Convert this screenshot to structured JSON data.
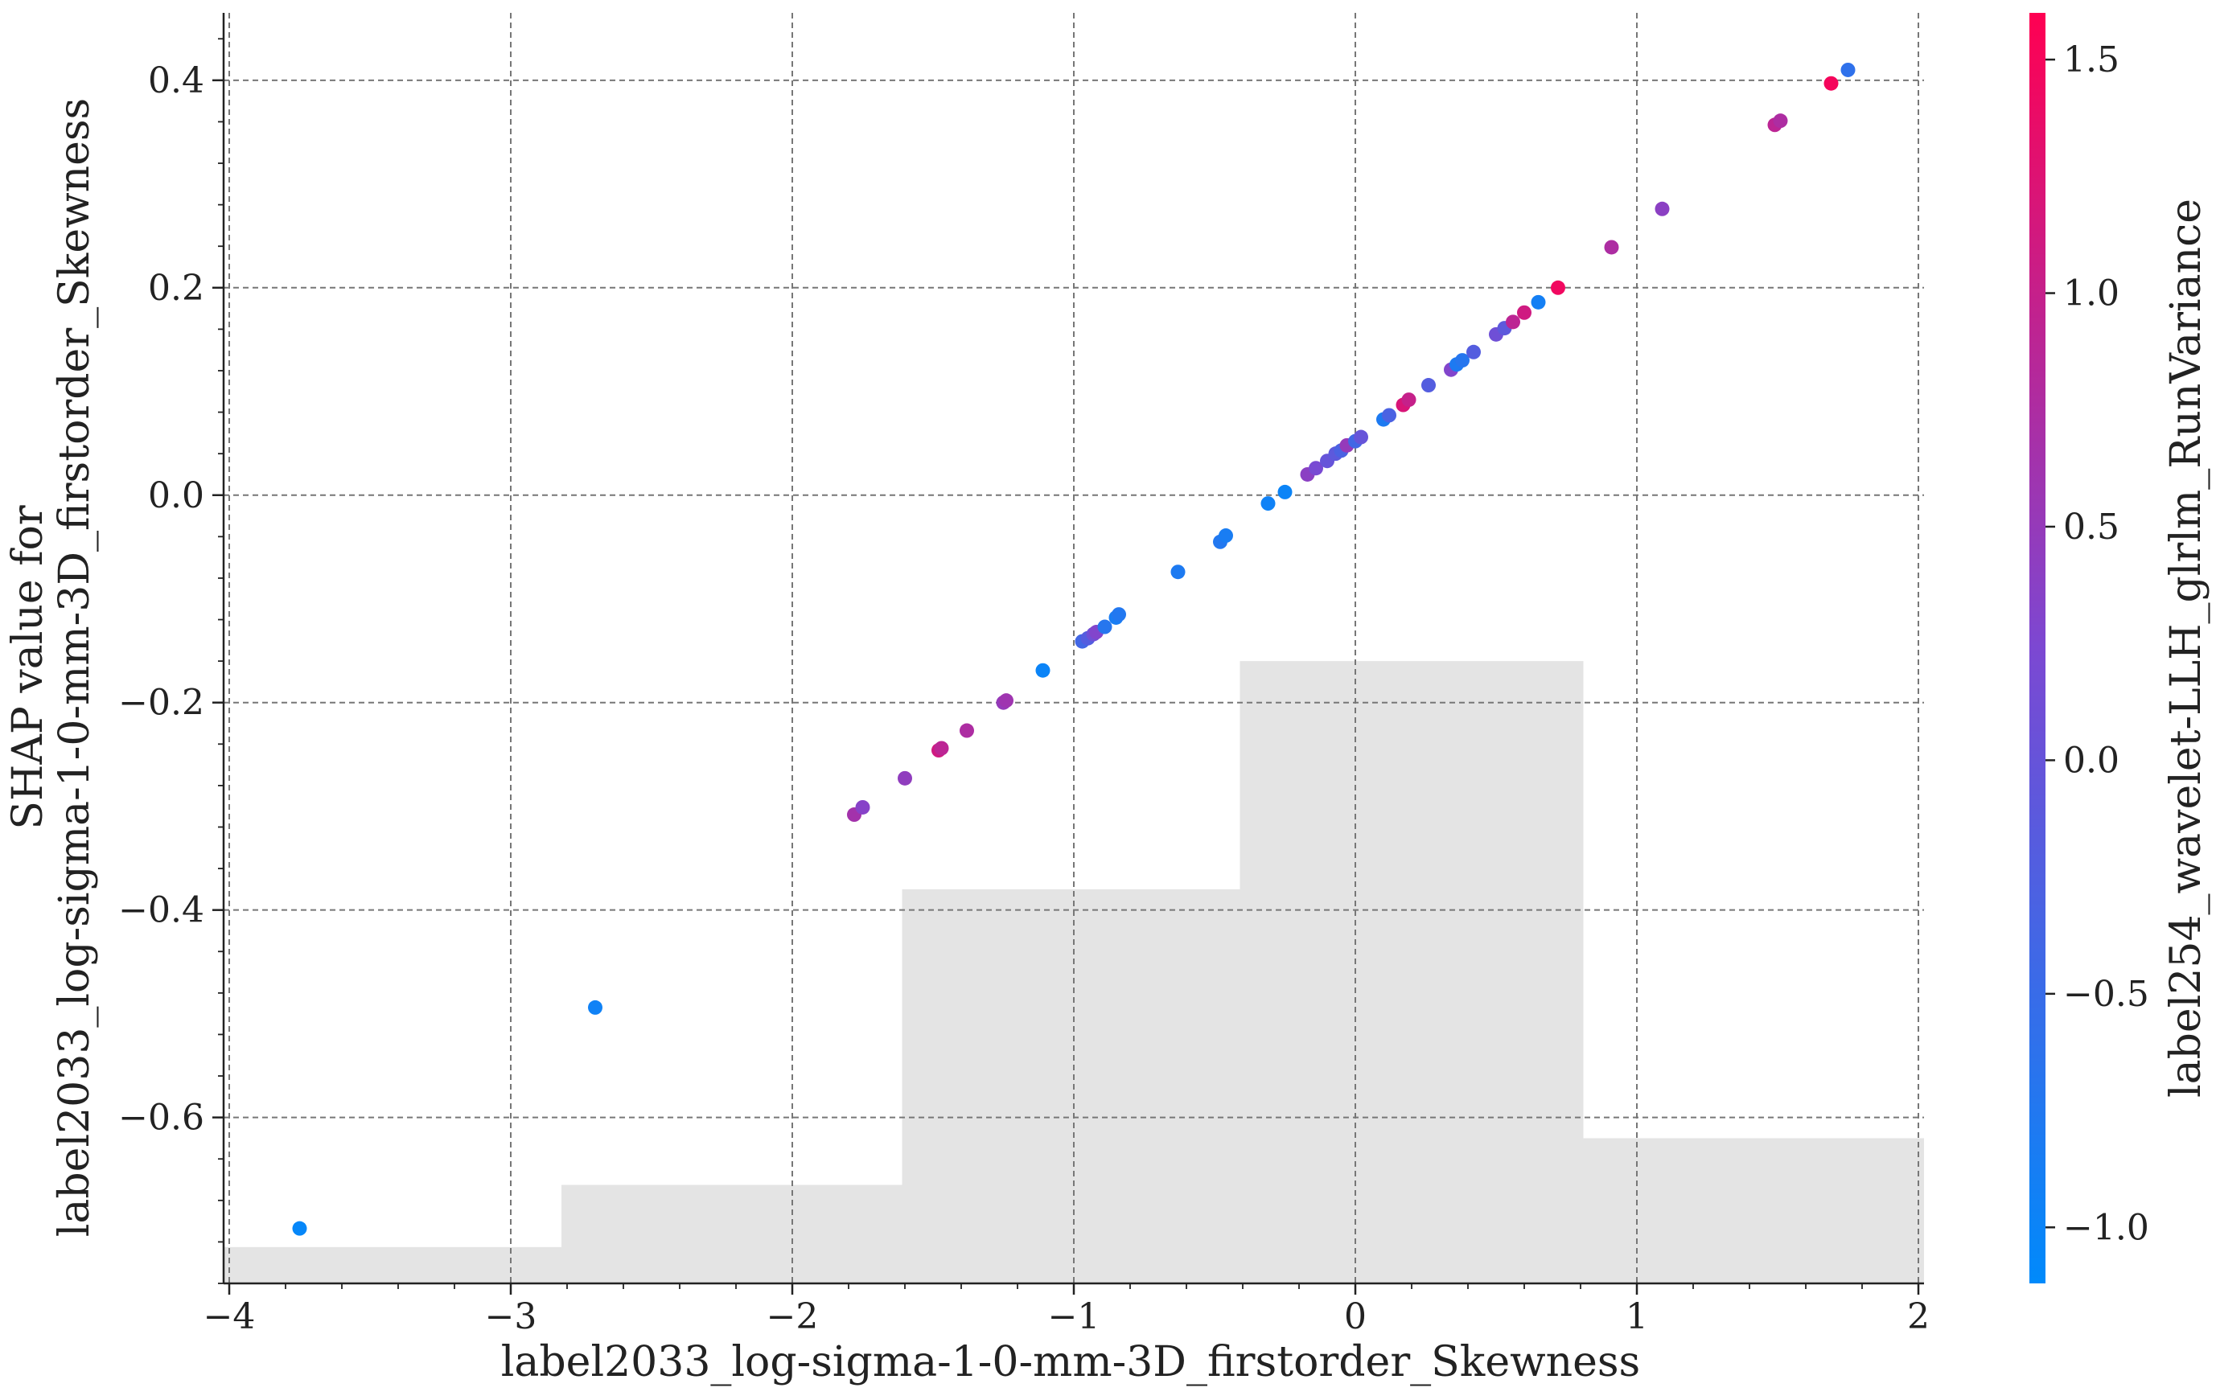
{
  "chart_data": {
    "type": "scatter",
    "title": "",
    "xlabel": "label2033_log-sigma-1-0-mm-3D_firstorder_Skewness",
    "ylabel_lines": [
      "SHAP value for",
      "label2033_log-sigma-1-0-mm-3D_firstorder_Skewness"
    ],
    "xlim": [
      -4.02,
      2.02
    ],
    "ylim": [
      -0.76,
      0.465
    ],
    "x_ticks": [
      -4,
      -3,
      -2,
      -1,
      0,
      1,
      2
    ],
    "x_tick_labels": [
      "−4",
      "−3",
      "−2",
      "−1",
      "0",
      "1",
      "2"
    ],
    "y_ticks": [
      -0.6,
      -0.4,
      -0.2,
      0.0,
      0.2,
      0.4
    ],
    "y_tick_labels": [
      "−0.6",
      "−0.4",
      "−0.2",
      "0.0",
      "0.2",
      "0.4"
    ],
    "grid": true,
    "colorbar": {
      "label": "label254_wavelet-LLH_glrlm_RunVariance",
      "range": [
        -1.12,
        1.6
      ],
      "ticks": [
        -1.0,
        -0.5,
        0.0,
        0.5,
        1.0,
        1.5
      ],
      "tick_labels": [
        "−1.0",
        "−0.5",
        "0.0",
        "0.5",
        "1.0",
        "1.5"
      ],
      "color_low": "#008afb",
      "color_high": "#ff0052"
    },
    "histogram": {
      "bin_edges": [
        -4.02,
        -2.82,
        -1.61,
        -0.41,
        0.81,
        2.02
      ],
      "heights_in_y_units": [
        0.035,
        0.095,
        0.38,
        0.6,
        0.14
      ]
    },
    "points": [
      {
        "x": -3.75,
        "y": -0.707,
        "c": -1.05
      },
      {
        "x": -2.7,
        "y": -0.494,
        "c": -0.95
      },
      {
        "x": -1.78,
        "y": -0.308,
        "c": 0.65
      },
      {
        "x": -1.75,
        "y": -0.301,
        "c": 0.35
      },
      {
        "x": -1.6,
        "y": -0.273,
        "c": 0.45
      },
      {
        "x": -1.48,
        "y": -0.246,
        "c": 1.1
      },
      {
        "x": -1.47,
        "y": -0.244,
        "c": 0.9
      },
      {
        "x": -1.38,
        "y": -0.227,
        "c": 0.75
      },
      {
        "x": -1.25,
        "y": -0.2,
        "c": 0.5
      },
      {
        "x": -1.24,
        "y": -0.198,
        "c": 0.6
      },
      {
        "x": -1.11,
        "y": -0.169,
        "c": -1.0
      },
      {
        "x": -0.97,
        "y": -0.141,
        "c": -0.4
      },
      {
        "x": -0.95,
        "y": -0.138,
        "c": -0.2
      },
      {
        "x": -0.93,
        "y": -0.134,
        "c": 0.1
      },
      {
        "x": -0.92,
        "y": -0.132,
        "c": 0.3
      },
      {
        "x": -0.89,
        "y": -0.127,
        "c": -0.7
      },
      {
        "x": -0.85,
        "y": -0.118,
        "c": -0.85
      },
      {
        "x": -0.84,
        "y": -0.115,
        "c": -0.75
      },
      {
        "x": -0.63,
        "y": -0.074,
        "c": -0.8
      },
      {
        "x": -0.48,
        "y": -0.045,
        "c": -0.75
      },
      {
        "x": -0.46,
        "y": -0.039,
        "c": -0.85
      },
      {
        "x": -0.31,
        "y": -0.008,
        "c": -0.95
      },
      {
        "x": -0.25,
        "y": 0.003,
        "c": -1.0
      },
      {
        "x": -0.17,
        "y": 0.02,
        "c": 0.4
      },
      {
        "x": -0.14,
        "y": 0.026,
        "c": 0.2
      },
      {
        "x": -0.1,
        "y": 0.033,
        "c": 0.0
      },
      {
        "x": -0.07,
        "y": 0.04,
        "c": -0.1
      },
      {
        "x": -0.05,
        "y": 0.043,
        "c": -0.3
      },
      {
        "x": -0.03,
        "y": 0.048,
        "c": 0.5
      },
      {
        "x": 0.0,
        "y": 0.052,
        "c": -0.4
      },
      {
        "x": 0.02,
        "y": 0.056,
        "c": 0.0
      },
      {
        "x": 0.1,
        "y": 0.073,
        "c": -0.8
      },
      {
        "x": 0.12,
        "y": 0.077,
        "c": -0.3
      },
      {
        "x": 0.17,
        "y": 0.087,
        "c": 1.2
      },
      {
        "x": 0.19,
        "y": 0.092,
        "c": 1.0
      },
      {
        "x": 0.26,
        "y": 0.106,
        "c": -0.2
      },
      {
        "x": 0.34,
        "y": 0.121,
        "c": 0.3
      },
      {
        "x": 0.36,
        "y": 0.126,
        "c": -0.8
      },
      {
        "x": 0.38,
        "y": 0.13,
        "c": -0.7
      },
      {
        "x": 0.42,
        "y": 0.138,
        "c": -0.2
      },
      {
        "x": 0.5,
        "y": 0.155,
        "c": 0.1
      },
      {
        "x": 0.53,
        "y": 0.161,
        "c": -0.1
      },
      {
        "x": 0.56,
        "y": 0.167,
        "c": 0.9
      },
      {
        "x": 0.6,
        "y": 0.176,
        "c": 1.1
      },
      {
        "x": 0.65,
        "y": 0.186,
        "c": -0.9
      },
      {
        "x": 0.72,
        "y": 0.2,
        "c": 1.45
      },
      {
        "x": 0.91,
        "y": 0.239,
        "c": 0.75
      },
      {
        "x": 1.09,
        "y": 0.276,
        "c": 0.4
      },
      {
        "x": 1.49,
        "y": 0.357,
        "c": 0.9
      },
      {
        "x": 1.51,
        "y": 0.361,
        "c": 0.75
      },
      {
        "x": 1.69,
        "y": 0.397,
        "c": 1.5
      },
      {
        "x": 1.75,
        "y": 0.41,
        "c": -0.6
      }
    ]
  }
}
